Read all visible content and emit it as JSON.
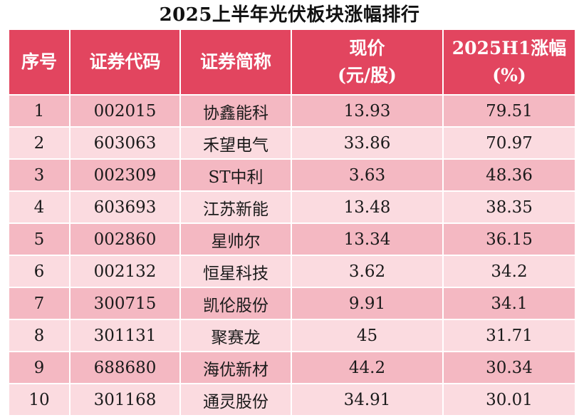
{
  "title": "2025上半年光伏板块涨幅排行",
  "headers": {
    "rank": "序号",
    "code": "证券代码",
    "name": "证券简称",
    "price_line1": "现价",
    "price_line2": "(元/股)",
    "gain_line1": "2025H1涨幅",
    "gain_line2": "(%)"
  },
  "rows": [
    {
      "rank": "1",
      "code": "002015",
      "name": "协鑫能科",
      "price": "13.93",
      "gain": "79.51"
    },
    {
      "rank": "2",
      "code": "603063",
      "name": "禾望电气",
      "price": "33.86",
      "gain": "70.97"
    },
    {
      "rank": "3",
      "code": "002309",
      "name": "ST中利",
      "price": "3.63",
      "gain": "48.36"
    },
    {
      "rank": "4",
      "code": "603693",
      "name": "江苏新能",
      "price": "13.48",
      "gain": "38.35"
    },
    {
      "rank": "5",
      "code": "002860",
      "name": "星帅尔",
      "price": "13.34",
      "gain": "36.15"
    },
    {
      "rank": "6",
      "code": "002132",
      "name": "恒星科技",
      "price": "3.62",
      "gain": "34.2"
    },
    {
      "rank": "7",
      "code": "300715",
      "name": "凯伦股份",
      "price": "9.91",
      "gain": "34.1"
    },
    {
      "rank": "8",
      "code": "301131",
      "name": "聚赛龙",
      "price": "45",
      "gain": "31.71"
    },
    {
      "rank": "9",
      "code": "688680",
      "name": "海优新材",
      "price": "44.2",
      "gain": "30.34"
    },
    {
      "rank": "10",
      "code": "301168",
      "name": "通灵股份",
      "price": "34.91",
      "gain": "30.01"
    }
  ],
  "colors": {
    "header_bg": "#e2455f",
    "row_dark": "#f4b8c2",
    "row_light": "#fbdbe0"
  }
}
